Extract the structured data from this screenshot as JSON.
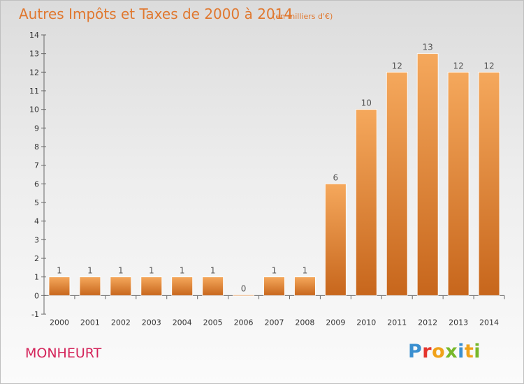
{
  "header": {
    "title": "Autres Impôts et Taxes de 2000 à 2014",
    "unit": "(en milliers d'€)"
  },
  "footer": {
    "commune": "MONHEURT",
    "logo": {
      "letters": [
        "P",
        "r",
        "o",
        "x",
        "i",
        "t",
        "i"
      ],
      "colors": [
        "#3a8fd0",
        "#e4352d",
        "#f0a21a",
        "#78b82a",
        "#3a8fd0",
        "#f0a21a",
        "#78b82a"
      ]
    }
  },
  "colors": {
    "bar_light": "#f5a85c",
    "bar_dark": "#c7661c",
    "title": "#e0782f",
    "commune": "#d4245a"
  },
  "chart_data": {
    "type": "bar",
    "title": "Autres Impôts et Taxes de 2000 à 2014",
    "subtitle": "(en milliers d'€)",
    "categories": [
      "2000",
      "2001",
      "2002",
      "2003",
      "2004",
      "2005",
      "2006",
      "2007",
      "2008",
      "2009",
      "2010",
      "2011",
      "2012",
      "2013",
      "2014"
    ],
    "values": [
      1,
      1,
      1,
      1,
      1,
      1,
      0,
      1,
      1,
      6,
      10,
      12,
      13,
      12,
      12
    ],
    "data_labels": [
      "1",
      "1",
      "1",
      "1",
      "1",
      "1",
      "0",
      "1",
      "1",
      "6",
      "10",
      "12",
      "13",
      "12",
      "12"
    ],
    "ylim": [
      -1,
      14
    ],
    "yticks": [
      "-1",
      "0",
      "1",
      "2",
      "3",
      "4",
      "5",
      "6",
      "7",
      "8",
      "9",
      "10",
      "11",
      "12",
      "13",
      "14"
    ],
    "grid": false,
    "xlabel": "",
    "ylabel": ""
  }
}
